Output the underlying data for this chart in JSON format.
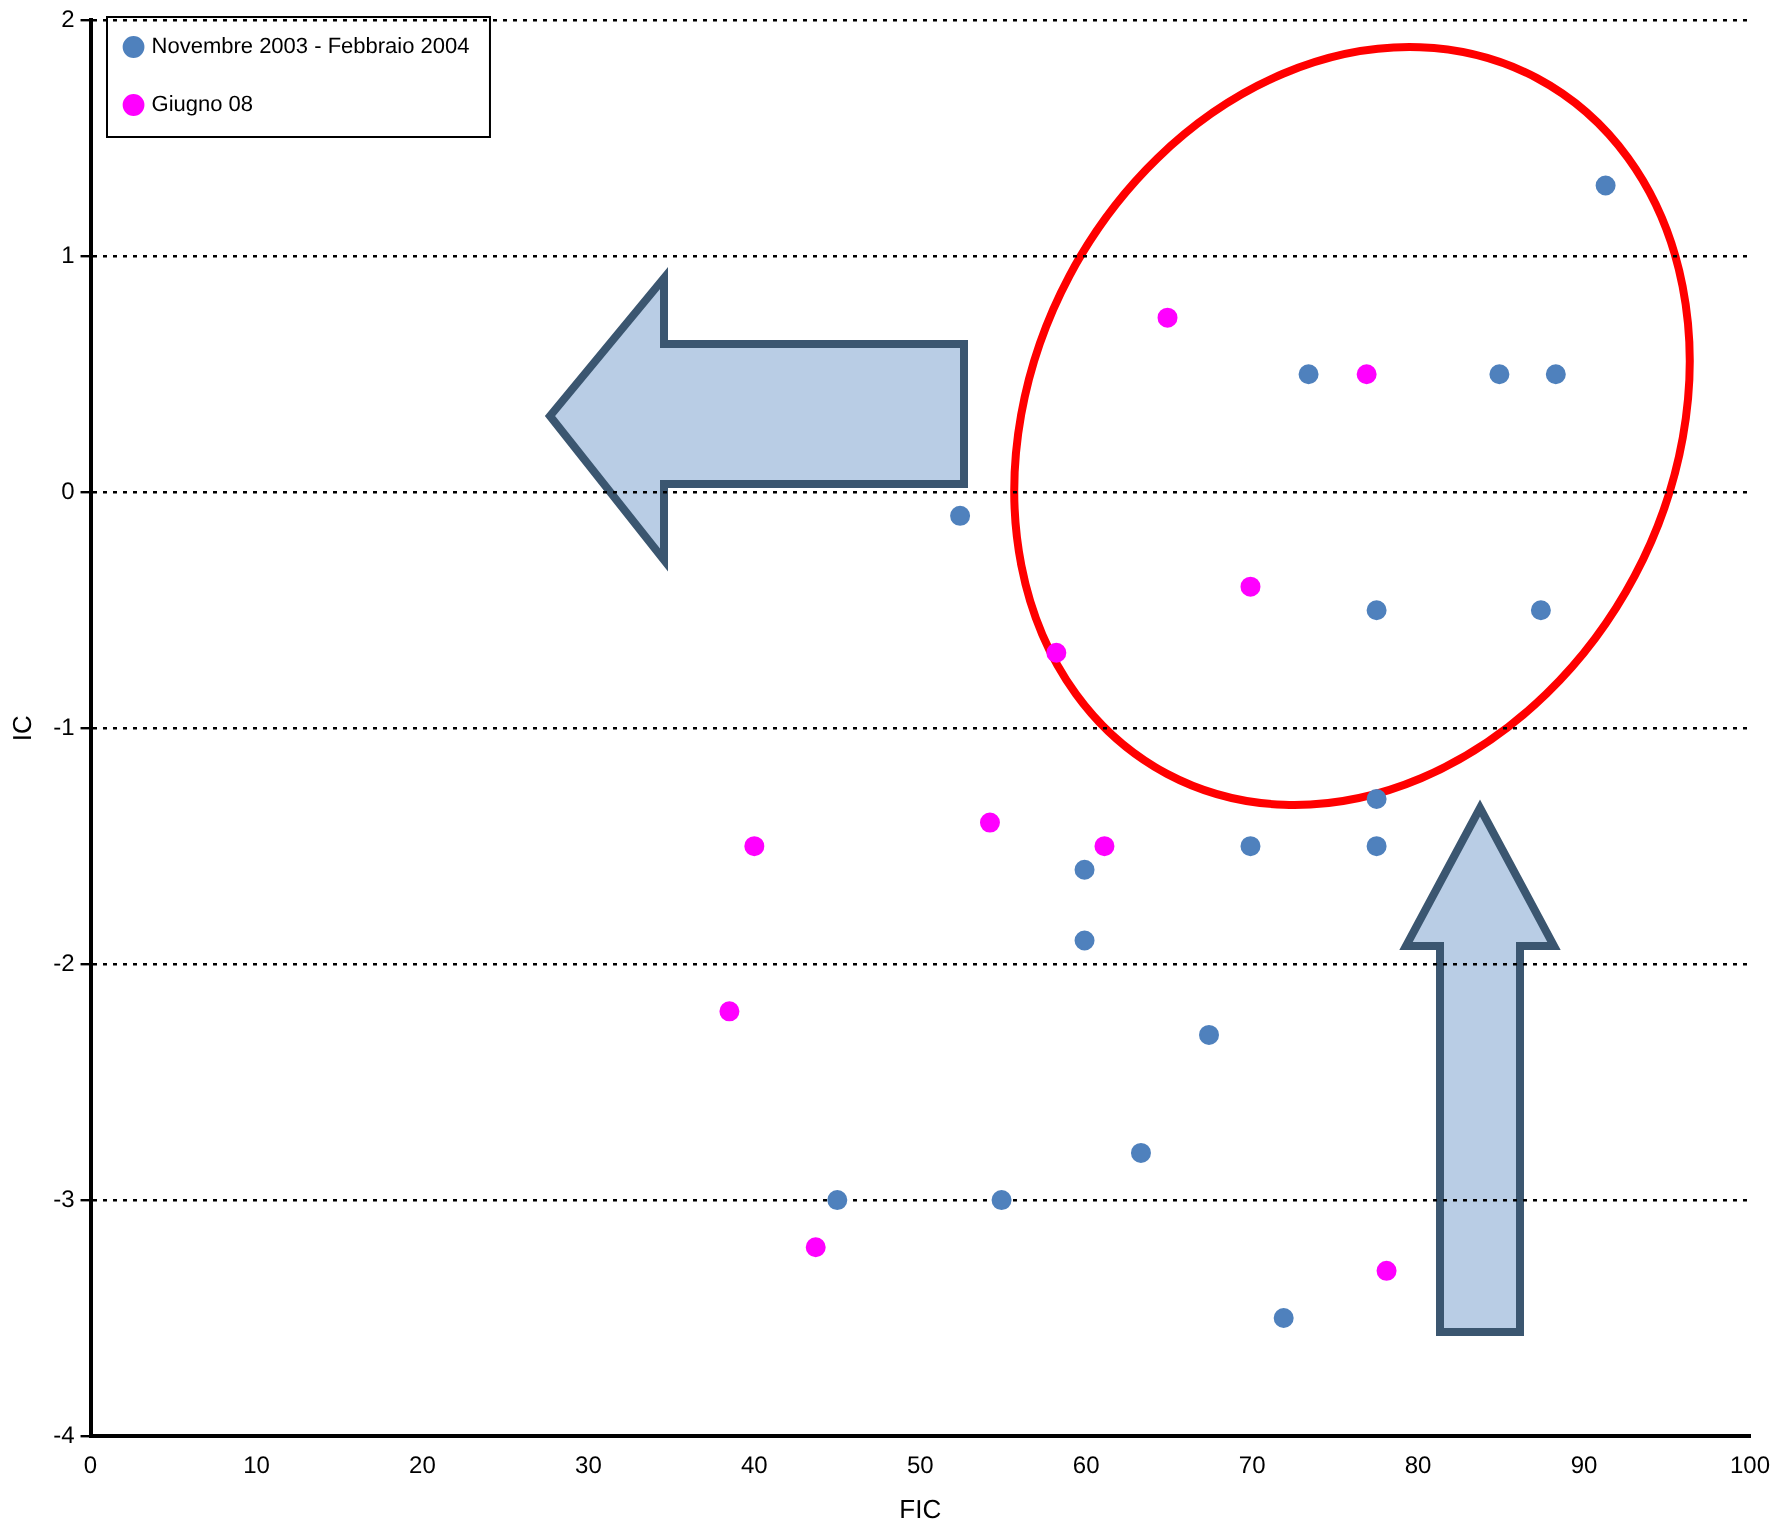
{
  "chart_data": {
    "type": "scatter",
    "xlabel": "FIC",
    "ylabel": "IC",
    "xlim": [
      0,
      100
    ],
    "xticks": [
      0,
      10,
      20,
      30,
      40,
      50,
      60,
      70,
      80,
      90,
      100
    ],
    "ylim": [
      -4,
      2
    ],
    "yticks": [
      -4,
      -3,
      -2,
      -1,
      0,
      1,
      2
    ],
    "grid": "y",
    "legend": "top left",
    "marker": "circle",
    "series": [
      {
        "name": "Novembre 2003 - Febbraio 2004",
        "color": "#4f81bd",
        "x": [
          91.3,
          73.4,
          84.9,
          88.3,
          52.4,
          77.5,
          87.4,
          77.5,
          77.5,
          69.9,
          59.9,
          59.9,
          67.4,
          63.3,
          45.0,
          54.9,
          71.9
        ],
        "values": [
          1.3,
          0.5,
          0.5,
          0.5,
          -0.1,
          -0.5,
          -0.5,
          -1.3,
          -1.5,
          -1.5,
          -1.6,
          -1.9,
          -2.3,
          -2.8,
          -3.0,
          -3.0,
          -3.5
        ]
      },
      {
        "name": "Giugno 08",
        "color": "#ff00ff",
        "x": [
          64.9,
          76.9,
          69.9,
          58.2,
          40.0,
          54.2,
          61.1,
          38.5,
          43.7,
          78.1
        ],
        "values": [
          0.74,
          0.5,
          -0.4,
          -0.68,
          -1.5,
          -1.4,
          -1.5,
          -2.2,
          -3.2,
          -3.3
        ]
      }
    ]
  }
}
